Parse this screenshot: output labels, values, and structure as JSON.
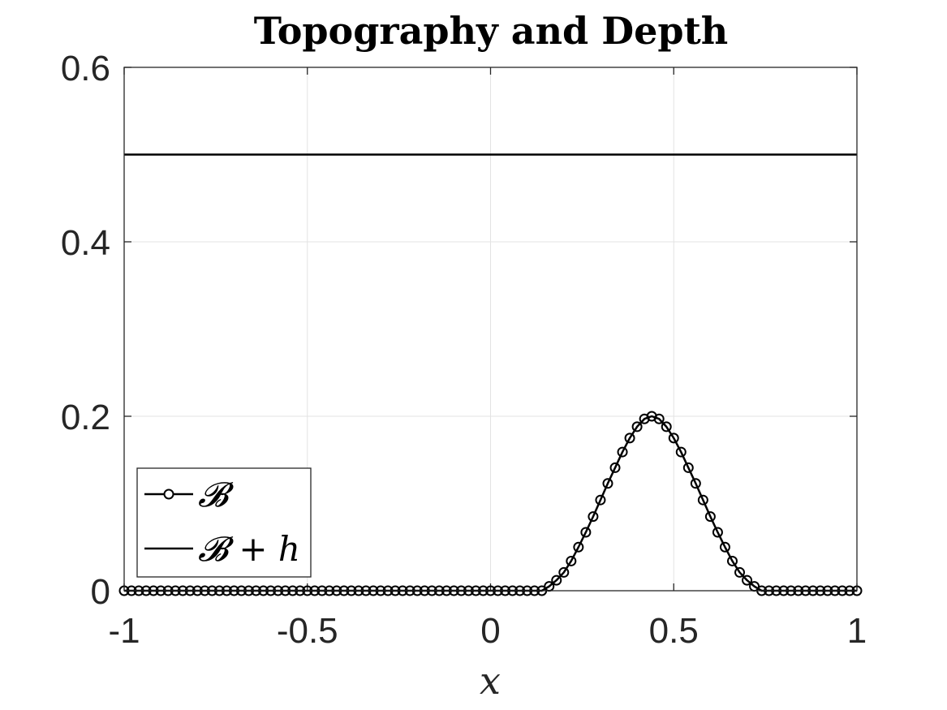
{
  "chart_data": {
    "type": "line",
    "title": "Topography and Depth",
    "xlabel": "x",
    "ylabel": "",
    "xlim": [
      -1,
      1
    ],
    "ylim": [
      0,
      0.6
    ],
    "xticks": [
      -1,
      -0.5,
      0,
      0.5,
      1
    ],
    "xtick_labels": [
      "-1",
      "-0.5",
      "0",
      "0.5",
      "1"
    ],
    "yticks": [
      0,
      0.2,
      0.4,
      0.6
    ],
    "ytick_labels": [
      "0",
      "0.2",
      "0.4",
      "0.6"
    ],
    "grid": true,
    "legend_position": "bottom-left",
    "series": [
      {
        "name": "𝓑",
        "marker": "circle",
        "line": "solid",
        "color": "#000000",
        "x": [
          -1,
          -0.98,
          -0.96,
          -0.94,
          -0.92,
          -0.9,
          -0.88,
          -0.86,
          -0.84,
          -0.82,
          -0.8,
          -0.78,
          -0.76,
          -0.74,
          -0.72,
          -0.7,
          -0.68,
          -0.66,
          -0.64,
          -0.62,
          -0.6,
          -0.58,
          -0.56,
          -0.54,
          -0.52,
          -0.5,
          -0.48,
          -0.46,
          -0.44,
          -0.42,
          -0.4,
          -0.38,
          -0.36,
          -0.34,
          -0.32,
          -0.3,
          -0.28,
          -0.26,
          -0.24,
          -0.22,
          -0.2,
          -0.18,
          -0.16,
          -0.14,
          -0.12,
          -0.1,
          -0.08,
          -0.06,
          -0.04,
          -0.02,
          0,
          0.02,
          0.04,
          0.06,
          0.08,
          0.1,
          0.12,
          0.14,
          0.16,
          0.18,
          0.2,
          0.22,
          0.24,
          0.26,
          0.28,
          0.3,
          0.32,
          0.34,
          0.36,
          0.38,
          0.4,
          0.42,
          0.44,
          0.46,
          0.48,
          0.5,
          0.52,
          0.54,
          0.56,
          0.58,
          0.6,
          0.62,
          0.64,
          0.66,
          0.68,
          0.7,
          0.72,
          0.74,
          0.76,
          0.78,
          0.8,
          0.82,
          0.84,
          0.86,
          0.88,
          0.9,
          0.92,
          0.94,
          0.96,
          0.98,
          1
        ],
        "y": [
          0,
          0,
          0,
          0,
          0,
          0,
          0,
          0,
          0,
          0,
          0,
          0,
          0,
          0,
          0,
          0,
          0,
          0,
          0,
          0,
          0,
          0,
          0,
          0,
          0,
          0,
          0,
          0,
          0,
          0,
          0,
          0,
          0,
          0,
          0,
          0,
          0,
          0,
          0,
          0,
          0,
          0,
          0,
          0,
          0,
          0,
          0,
          0,
          0,
          0,
          0,
          0,
          0,
          0,
          0,
          0,
          0,
          0,
          0.005,
          0.012,
          0.021,
          0.034,
          0.05,
          0.067,
          0.085,
          0.104,
          0.123,
          0.141,
          0.159,
          0.175,
          0.188,
          0.197,
          0.2,
          0.197,
          0.188,
          0.175,
          0.159,
          0.141,
          0.123,
          0.104,
          0.085,
          0.067,
          0.05,
          0.034,
          0.021,
          0.012,
          0.005,
          0,
          0,
          0,
          0,
          0,
          0,
          0,
          0,
          0,
          0,
          0,
          0,
          0,
          0
        ]
      },
      {
        "name": "𝓑 + h",
        "marker": "none",
        "line": "solid",
        "color": "#000000",
        "x": [
          -1,
          1
        ],
        "y": [
          0.5,
          0.5
        ]
      }
    ]
  }
}
